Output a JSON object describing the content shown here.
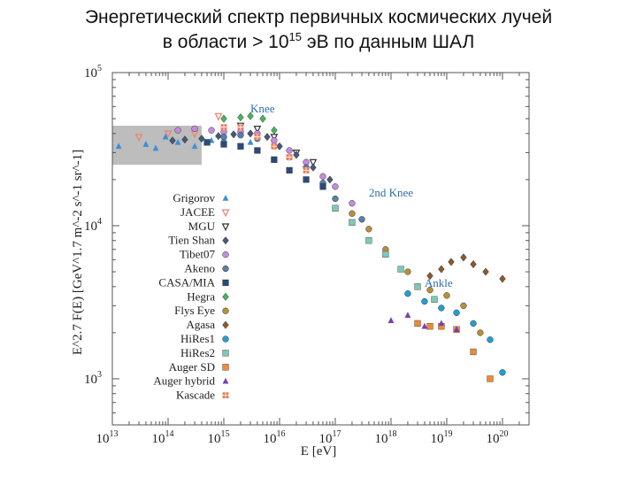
{
  "title": {
    "line1": "Энергетический спектр первичных космических лучей",
    "line2_pre": "в области > 10",
    "line2_sup": "15",
    "line2_post": " эВ по данным ШАЛ"
  },
  "chart_data": {
    "type": "scatter",
    "log_x": true,
    "log_y": true,
    "xlim": [
      10000000000000.0,
      3e+20
    ],
    "ylim": [
      500,
      100000
    ],
    "xlabel": "E [eV]",
    "ylabel": "E^2.7 F(E) [GeV^1.7 m^-2 s^-1 sr^-1]",
    "x_tick_labels": [
      {
        "base": "10",
        "exp": "13",
        "value": 10000000000000.0
      },
      {
        "base": "10",
        "exp": "14",
        "value": 100000000000000.0
      },
      {
        "base": "10",
        "exp": "15",
        "value": 1000000000000000.0
      },
      {
        "base": "10",
        "exp": "16",
        "value": 1e+16
      },
      {
        "base": "10",
        "exp": "17",
        "value": 1e+17
      },
      {
        "base": "10",
        "exp": "18",
        "value": 1e+18
      },
      {
        "base": "10",
        "exp": "19",
        "value": 1e+19
      },
      {
        "base": "10",
        "exp": "20",
        "value": 1e+20
      }
    ],
    "y_tick_labels": [
      {
        "base": "10",
        "exp": "3",
        "value": 1000
      },
      {
        "base": "10",
        "exp": "4",
        "value": 10000
      },
      {
        "base": "10",
        "exp": "5",
        "value": 100000
      }
    ],
    "direct_measurement_band": {
      "x": [
        10000000000000.0,
        400000000000000.0
      ],
      "y": [
        25000,
        45000
      ],
      "color": "#bdbdbd"
    },
    "annotations": [
      {
        "text": "Knee",
        "x": 3000000000000000.0,
        "y": 55000
      },
      {
        "text": "2nd Knee",
        "x": 4e+17,
        "y": 15500
      },
      {
        "text": "Ankle",
        "x": 4e+18,
        "y": 4000
      }
    ],
    "series": [
      {
        "name": "Grigorov",
        "marker": "triangle-up",
        "color": "#3a8fd9",
        "x": [
          13000000000000.0,
          40000000000000.0,
          60000000000000.0,
          90000000000000.0,
          150000000000000.0,
          300000000000000.0,
          600000000000000.0,
          1000000000000000.0,
          2000000000000000.0,
          3000000000000000.0
        ],
        "y": [
          33000,
          34000,
          32000,
          38000,
          35000,
          33000,
          36000,
          37000,
          40000,
          35000
        ]
      },
      {
        "name": "JACEE",
        "marker": "triangle-down",
        "color": "#e8836d",
        "x": [
          30000000000000.0,
          100000000000000.0,
          300000000000000.0,
          800000000000000.0
        ],
        "y": [
          38000,
          40000,
          40000,
          52000
        ]
      },
      {
        "name": "MGU",
        "marker": "triangle-down",
        "color": "#333333",
        "x": [
          2000000000000000.0,
          4000000000000000.0,
          8000000000000000.0,
          2e+16,
          4e+16
        ],
        "y": [
          45000,
          43000,
          38000,
          30000,
          26000
        ]
      },
      {
        "name": "Tien Shan",
        "marker": "diamond",
        "color": "#445a7a",
        "x": [
          120000000000000.0,
          200000000000000.0,
          400000000000000.0,
          800000000000000.0,
          1500000000000000.0,
          3000000000000000.0,
          6000000000000000.0,
          1e+16,
          2e+16,
          4e+16,
          8e+16
        ],
        "y": [
          36000,
          36500,
          37000,
          38500,
          39500,
          40000,
          38000,
          33000,
          29000,
          24000,
          20000
        ]
      },
      {
        "name": "Tibet07",
        "marker": "circle",
        "color": "#c58be0",
        "x": [
          150000000000000.0,
          300000000000000.0,
          600000000000000.0,
          1000000000000000.0,
          2000000000000000.0,
          4000000000000000.0,
          8000000000000000.0,
          1.5e+16,
          3e+16,
          6e+16,
          1e+17,
          2e+17
        ],
        "y": [
          42000,
          43000,
          42000,
          41000,
          41000,
          40000,
          36000,
          31000,
          26000,
          21000,
          18000,
          14000
        ]
      },
      {
        "name": "Akeno",
        "marker": "circle",
        "color": "#5a7fa8",
        "x": [
          1000000000000000.0,
          2000000000000000.0,
          4000000000000000.0,
          8000000000000000.0,
          1.5e+16,
          3e+16,
          6e+16,
          1e+17,
          3e+17
        ],
        "y": [
          38000,
          39000,
          37000,
          33000,
          28000,
          24000,
          19000,
          15000,
          11000
        ]
      },
      {
        "name": "CASA/MIA",
        "marker": "square",
        "color": "#2a4a7a",
        "x": [
          500000000000000.0,
          1000000000000000.0,
          2000000000000000.0,
          4000000000000000.0,
          8000000000000000.0,
          1.5e+16,
          3e+16,
          6e+16
        ],
        "y": [
          35000,
          34000,
          33000,
          31000,
          27000,
          23000,
          20000,
          18000
        ]
      },
      {
        "name": "Hegra",
        "marker": "diamond",
        "color": "#46b65a",
        "x": [
          1000000000000000.0,
          2000000000000000.0,
          3000000000000000.0,
          5000000000000000.0,
          8000000000000000.0
        ],
        "y": [
          50000,
          51000,
          52000,
          50000,
          42000
        ]
      },
      {
        "name": "Flys Eye",
        "marker": "circle",
        "color": "#b8903a",
        "x": [
          2e+17,
          4e+17,
          8e+17,
          2e+18,
          5e+18,
          1e+19,
          2e+19,
          4e+19
        ],
        "y": [
          12000,
          9500,
          7000,
          5000,
          3800,
          3500,
          3000,
          2000
        ]
      },
      {
        "name": "Agasa",
        "marker": "diamond",
        "color": "#8a5a2a",
        "x": [
          5e+18,
          8e+18,
          1.2e+19,
          2e+19,
          3e+19,
          5e+19,
          1e+20
        ],
        "y": [
          4700,
          5200,
          5800,
          6200,
          5600,
          5000,
          4500
        ]
      },
      {
        "name": "HiRes1",
        "marker": "circle",
        "color": "#1f9fd6",
        "x": [
          2e+18,
          4e+18,
          8e+18,
          1.5e+19,
          3e+19,
          6e+19,
          1e+20
        ],
        "y": [
          3600,
          3200,
          2900,
          2700,
          2300,
          1800,
          1100
        ]
      },
      {
        "name": "HiRes2",
        "marker": "square",
        "color": "#7fc7b6",
        "x": [
          1e+17,
          2e+17,
          4e+17,
          8e+17,
          1.5e+18,
          3e+18,
          6e+18
        ],
        "y": [
          13000,
          10500,
          8000,
          6500,
          5200,
          4000,
          3300
        ]
      },
      {
        "name": "Auger SD",
        "marker": "square",
        "color": "#f08a33",
        "x": [
          3e+18,
          5e+18,
          8e+18,
          1.5e+19,
          3e+19,
          6e+19
        ],
        "y": [
          2300,
          2200,
          2200,
          2100,
          1500,
          1000
        ]
      },
      {
        "name": "Auger hybrid",
        "marker": "triangle-up",
        "color": "#7a3fb0",
        "x": [
          1e+18,
          2e+18,
          4e+18,
          8e+18,
          1.5e+19
        ],
        "y": [
          2400,
          2600,
          2200,
          2300,
          2100
        ]
      },
      {
        "name": "Kascade",
        "marker": "square-cross",
        "color": "#f07a5a",
        "x": [
          1000000000000000.0,
          2000000000000000.0,
          4000000000000000.0,
          8000000000000000.0,
          1.5e+16,
          3e+16
        ],
        "y": [
          44000,
          44000,
          38000,
          33000,
          28000,
          23000
        ]
      }
    ]
  }
}
